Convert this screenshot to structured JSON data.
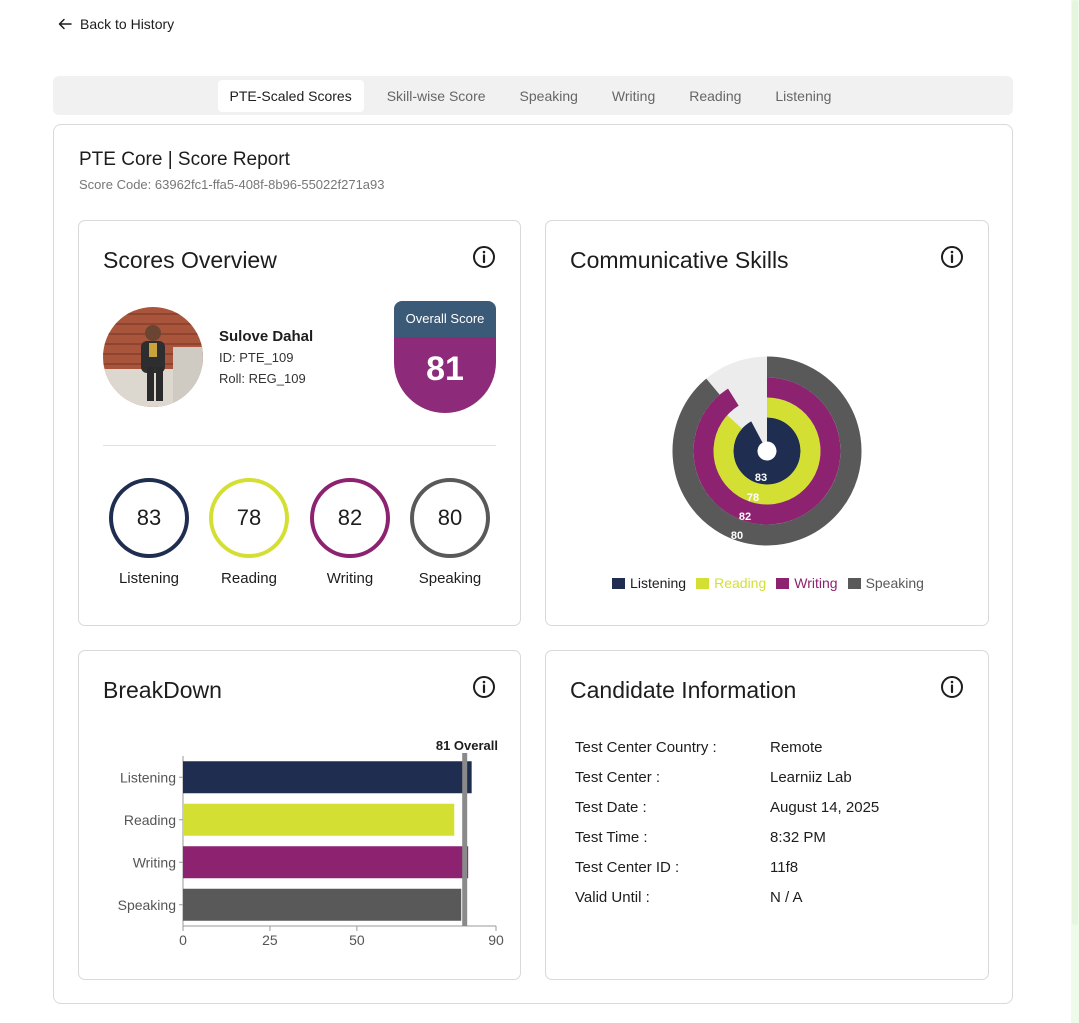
{
  "nav": {
    "back_label": "Back to History"
  },
  "tabs": [
    {
      "label": "PTE-Scaled Scores",
      "active": true
    },
    {
      "label": "Skill-wise Score",
      "active": false
    },
    {
      "label": "Speaking",
      "active": false
    },
    {
      "label": "Writing",
      "active": false
    },
    {
      "label": "Reading",
      "active": false
    },
    {
      "label": "Listening",
      "active": false
    }
  ],
  "report": {
    "title": "PTE Core | Score Report",
    "score_code": "Score Code: 63962fc1-ffa5-408f-8b96-55022f271a93"
  },
  "overview": {
    "title": "Scores Overview",
    "candidate": {
      "name": "Sulove Dahal",
      "id_line": "ID: PTE_109",
      "roll_line": "Roll: REG_109"
    },
    "overall": {
      "label": "Overall Score",
      "value": "81"
    },
    "skills": [
      {
        "label": "Listening",
        "value": "83",
        "color": "#1f2d50"
      },
      {
        "label": "Reading",
        "value": "78",
        "color": "#d4df33"
      },
      {
        "label": "Writing",
        "value": "82",
        "color": "#8d2270"
      },
      {
        "label": "Speaking",
        "value": "80",
        "color": "#595959"
      }
    ]
  },
  "communicative": {
    "title": "Communicative Skills",
    "chart_data": {
      "type": "pie",
      "variant": "concentric-radial",
      "max": 90,
      "series": [
        {
          "name": "Listening",
          "value": 83,
          "color": "#1f2d50"
        },
        {
          "name": "Reading",
          "value": 78,
          "color": "#d4df33"
        },
        {
          "name": "Writing",
          "value": 82,
          "color": "#8d2270"
        },
        {
          "name": "Speaking",
          "value": 80,
          "color": "#595959"
        }
      ],
      "legend": "bottom"
    }
  },
  "breakdown": {
    "title": "BreakDown",
    "chart_data": {
      "type": "bar",
      "orientation": "horizontal",
      "categories": [
        "Listening",
        "Reading",
        "Writing",
        "Speaking"
      ],
      "values": [
        83,
        78,
        82,
        80
      ],
      "colors": [
        "#1f2d50",
        "#d4df33",
        "#8d2270",
        "#595959"
      ],
      "xlim": [
        0,
        90
      ],
      "xticks": [
        0,
        25,
        50,
        90
      ],
      "reference": {
        "value": 81,
        "label": "81 Overall"
      }
    }
  },
  "candidate_info": {
    "title": "Candidate Information",
    "rows": [
      {
        "label": "Test Center Country :",
        "value": "Remote"
      },
      {
        "label": "Test Center :",
        "value": "Learniiz Lab"
      },
      {
        "label": "Test Date :",
        "value": "August 14, 2025"
      },
      {
        "label": "Test Time :",
        "value": "8:32 PM"
      },
      {
        "label": "Test Center ID :",
        "value": "11f8"
      },
      {
        "label": "Valid Until :",
        "value": "N / A"
      }
    ]
  }
}
